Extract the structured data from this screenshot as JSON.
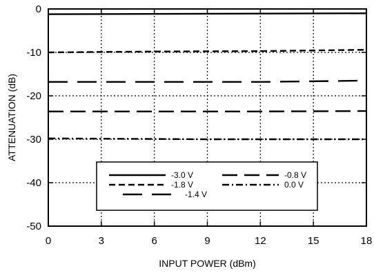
{
  "chart_data": {
    "type": "line",
    "title": "",
    "xlabel": "INPUT POWER (dBm)",
    "ylabel": "ATTENUATION (dB)",
    "xlim": [
      0,
      18
    ],
    "ylim": [
      -50,
      0
    ],
    "xticks": [
      0,
      3,
      6,
      9,
      12,
      15,
      18
    ],
    "yticks": [
      0,
      -10,
      -20,
      -30,
      -40,
      -50
    ],
    "grid": true,
    "legend_position": "bottom-center",
    "series": [
      {
        "name": "-3.0 V",
        "dash": "solid",
        "color": "#000000",
        "x": [
          0,
          18
        ],
        "y": [
          -1.2,
          -1.0
        ]
      },
      {
        "name": "-1.8 V",
        "dash": "short-dash",
        "color": "#000000",
        "x": [
          0,
          6,
          12,
          18
        ],
        "y": [
          -10.0,
          -9.8,
          -9.7,
          -9.4
        ]
      },
      {
        "name": "-1.4 V",
        "dash": "long-dash",
        "color": "#000000",
        "x": [
          0,
          6,
          12,
          18
        ],
        "y": [
          -16.8,
          -16.8,
          -16.8,
          -16.5
        ]
      },
      {
        "name": "-0.8 V",
        "dash": "dash",
        "color": "#000000",
        "x": [
          0,
          6,
          12,
          18
        ],
        "y": [
          -23.6,
          -23.6,
          -23.6,
          -23.5
        ]
      },
      {
        "name": "0.0 V",
        "dash": "dash-dot",
        "color": "#000000",
        "x": [
          0,
          9,
          18
        ],
        "y": [
          -29.8,
          -30.0,
          -30.0
        ]
      }
    ]
  }
}
